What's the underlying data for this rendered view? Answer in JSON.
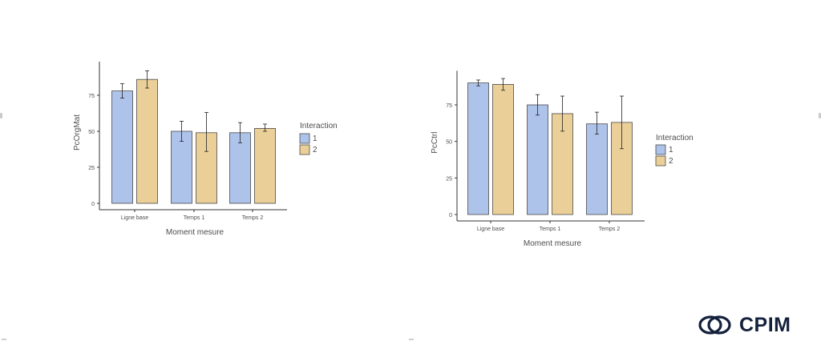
{
  "chart_data": [
    {
      "type": "bar",
      "xlabel": "Moment mesure",
      "ylabel": "PcOrgMat",
      "categories": [
        "Ligne base",
        "Temps 1",
        "Temps 2"
      ],
      "ylim": [
        0,
        100
      ],
      "yticks": [
        0,
        25,
        50,
        75
      ],
      "legend": {
        "title": "Interaction",
        "position": "right"
      },
      "grid": false,
      "series": [
        {
          "name": "1",
          "color": "#aec3ea",
          "values": [
            78,
            50,
            49
          ],
          "error_low": [
            73,
            43,
            42
          ],
          "error_high": [
            83,
            57,
            56
          ]
        },
        {
          "name": "2",
          "color": "#ebcf98",
          "values": [
            86,
            49,
            52
          ],
          "error_low": [
            80,
            36,
            50
          ],
          "error_high": [
            92,
            63,
            55
          ]
        }
      ]
    },
    {
      "type": "bar",
      "xlabel": "Moment mesure",
      "ylabel": "PcCtrl",
      "categories": [
        "Ligne base",
        "Temps 1",
        "Temps 2"
      ],
      "ylim": [
        0,
        100
      ],
      "yticks": [
        0,
        25,
        50,
        75
      ],
      "legend": {
        "title": "Interaction",
        "position": "right"
      },
      "grid": false,
      "series": [
        {
          "name": "1",
          "color": "#aec3ea",
          "values": [
            90,
            75,
            62
          ],
          "error_low": [
            88,
            68,
            55
          ],
          "error_high": [
            92,
            82,
            70
          ]
        },
        {
          "name": "2",
          "color": "#ebcf98",
          "values": [
            89,
            69,
            63
          ],
          "error_low": [
            85,
            57,
            45
          ],
          "error_high": [
            93,
            81,
            81
          ]
        }
      ]
    }
  ],
  "branding": {
    "logo_text": "CPIM",
    "logo_icon": "cpim-rings-icon",
    "logo_color": "#14213d"
  },
  "colors": {
    "axis": "#333333",
    "bar_outline": "#4a4a4a",
    "text": "#4d4d4d"
  }
}
